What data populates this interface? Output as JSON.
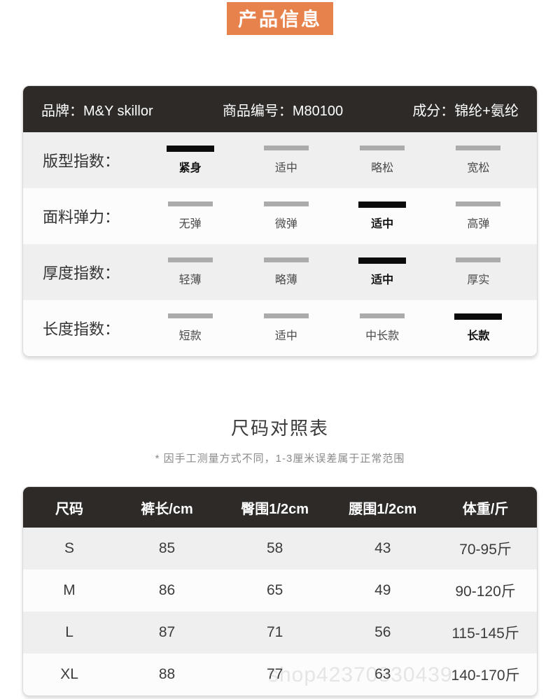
{
  "page": {
    "badge": "产品信息"
  },
  "colors": {
    "accent": "#E8824C",
    "header_bg": "#2E2A28",
    "bar_gray": "#ABABAB",
    "bar_selected": "#0B0B0B",
    "row_alt": "#EFEFEF"
  },
  "product_info": {
    "brand": "品牌：M&Y skillor",
    "sku": "商品编号：M80100",
    "composition": "成分：锦纶+氨纶",
    "index_rows": [
      {
        "label": "版型指数：",
        "options": [
          {
            "text": "紧身",
            "selected": true
          },
          {
            "text": "适中",
            "selected": false
          },
          {
            "text": "略松",
            "selected": false
          },
          {
            "text": "宽松",
            "selected": false
          }
        ]
      },
      {
        "label": "面料弹力：",
        "options": [
          {
            "text": "无弹",
            "selected": false
          },
          {
            "text": "微弹",
            "selected": false
          },
          {
            "text": "适中",
            "selected": true
          },
          {
            "text": "高弹",
            "selected": false
          }
        ]
      },
      {
        "label": "厚度指数：",
        "options": [
          {
            "text": "轻薄",
            "selected": false
          },
          {
            "text": "略薄",
            "selected": false
          },
          {
            "text": "适中",
            "selected": true
          },
          {
            "text": "厚实",
            "selected": false
          }
        ]
      },
      {
        "label": "长度指数：",
        "options": [
          {
            "text": "短款",
            "selected": false
          },
          {
            "text": "适中",
            "selected": false
          },
          {
            "text": "中长款",
            "selected": false
          },
          {
            "text": "长款",
            "selected": true
          }
        ]
      }
    ]
  },
  "size_chart": {
    "title": "尺码对照表",
    "note": "* 因手工测量方式不同，1-3厘米误差属于正常范围",
    "columns": [
      "尺码",
      "裤长/cm",
      "臀围1/2cm",
      "腰围1/2cm",
      "体重/斤"
    ],
    "rows": [
      [
        "S",
        "85",
        "58",
        "43",
        "70-95斤"
      ],
      [
        "M",
        "86",
        "65",
        "49",
        "90-120斤"
      ],
      [
        "L",
        "87",
        "71",
        "56",
        "115-145斤"
      ],
      [
        "XL",
        "88",
        "77",
        "63",
        "140-170斤"
      ]
    ],
    "watermark": "shop42370330439"
  }
}
